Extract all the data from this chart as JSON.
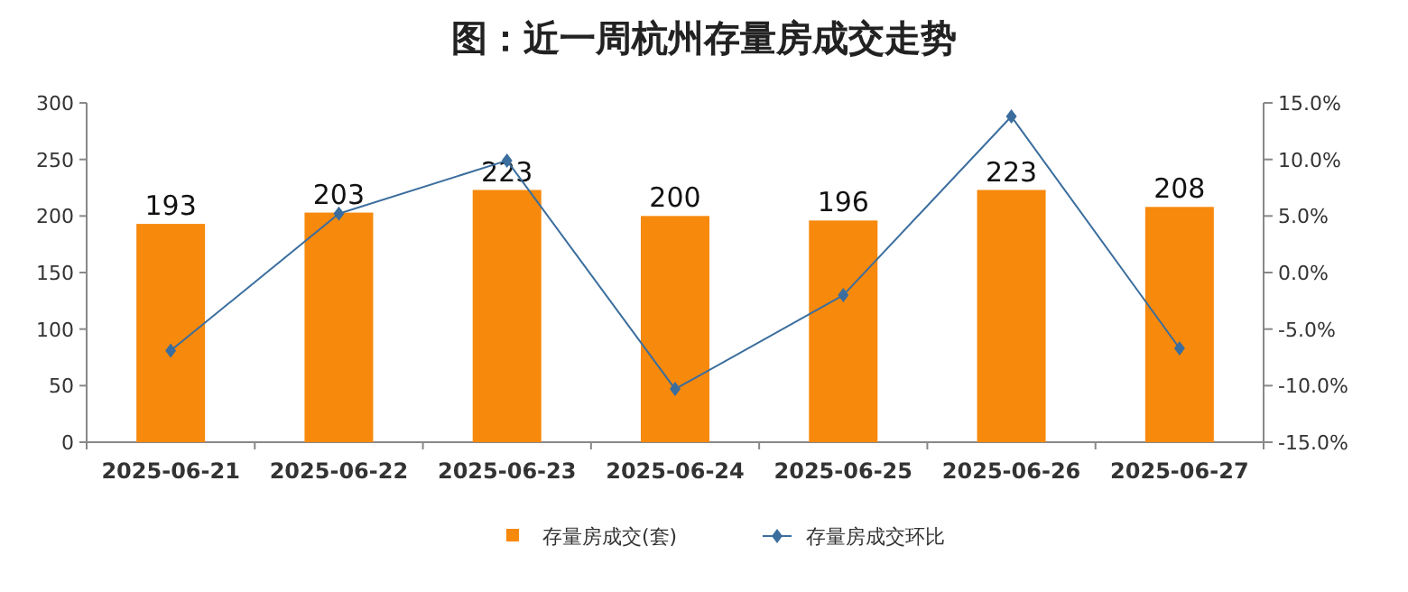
{
  "chart_data": {
    "type": "bar",
    "title": "图：近一周杭州存量房成交走势",
    "categories": [
      "2025-06-21",
      "2025-06-22",
      "2025-06-23",
      "2025-06-24",
      "2025-06-25",
      "2025-06-26",
      "2025-06-27"
    ],
    "series": [
      {
        "name": "存量房成交(套)",
        "color": "#f7890c",
        "values": [
          193,
          203,
          223,
          200,
          196,
          223,
          208
        ],
        "value_labels": [
          "193",
          "203",
          "223",
          "200",
          "196",
          "223",
          "208"
        ]
      },
      {
        "name": "存量房成交环比",
        "type": "line",
        "axis": "y2",
        "color": "#3b6e9e",
        "marker": "diamond",
        "values": [
          -6.9,
          5.2,
          9.9,
          -10.3,
          -2.0,
          13.8,
          -6.7
        ]
      }
    ],
    "ylim": [
      0,
      300
    ],
    "yticks": [
      0,
      50,
      100,
      150,
      200,
      250,
      300
    ],
    "y2lim": [
      -15,
      15
    ],
    "y2ticks": [
      {
        "value": -15,
        "label": "-15.0%"
      },
      {
        "value": -10,
        "label": "-10.0%"
      },
      {
        "value": -5,
        "label": "-5.0%"
      },
      {
        "value": 0,
        "label": "0.0%"
      },
      {
        "value": 5,
        "label": "5.0%"
      },
      {
        "value": 10,
        "label": "10.0%"
      },
      {
        "value": 15,
        "label": "15.0%"
      }
    ],
    "grid": false,
    "legend": "bottom"
  }
}
